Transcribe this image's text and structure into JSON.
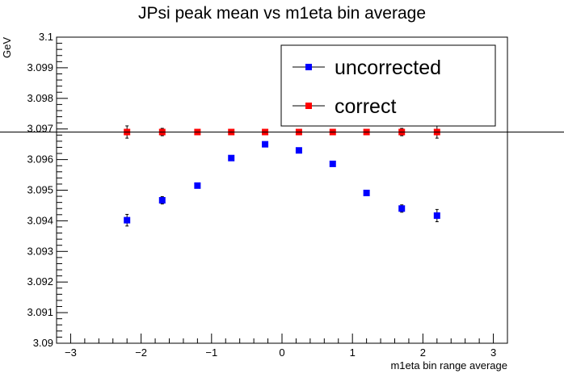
{
  "chart_data": {
    "type": "scatter",
    "title": "JPsi peak mean vs m1eta bin average",
    "xlabel": "m1eta bin range average",
    "ylabel": "GeV",
    "xlim": [
      -3.2,
      3.2
    ],
    "ylim": [
      3.09,
      3.1
    ],
    "x_ticks": [
      -3,
      -2,
      -1,
      0,
      1,
      2,
      3
    ],
    "x_tick_labels": [
      "−3",
      "−2",
      "−1",
      "0",
      "1",
      "2",
      "3"
    ],
    "y_ticks": [
      3.09,
      3.091,
      3.092,
      3.093,
      3.094,
      3.095,
      3.096,
      3.097,
      3.098,
      3.099,
      3.1
    ],
    "y_tick_labels": [
      "3.09",
      "3.091",
      "3.092",
      "3.093",
      "3.094",
      "3.095",
      "3.096",
      "3.097",
      "3.098",
      "3.099",
      "3.1"
    ],
    "grid": false,
    "legend_position": "top-right",
    "reference_line": {
      "y": 3.0969
    },
    "series": [
      {
        "name": "uncorrected",
        "color": "#0000ff",
        "marker": "square",
        "x": [
          -2.2,
          -1.7,
          -1.2,
          -0.72,
          -0.24,
          0.24,
          0.72,
          1.2,
          1.7,
          2.2
        ],
        "y": [
          3.09402,
          3.09467,
          3.09515,
          3.09605,
          3.0965,
          3.0963,
          3.09586,
          3.09491,
          3.0944,
          3.09417
        ],
        "yerr": [
          0.00019,
          0.00012,
          8e-05,
          6e-05,
          5e-05,
          5e-05,
          6e-05,
          8e-05,
          0.00012,
          0.0002
        ]
      },
      {
        "name": "correct",
        "color": "#ff0000",
        "marker": "square",
        "x": [
          -2.2,
          -1.7,
          -1.2,
          -0.72,
          -0.24,
          0.24,
          0.72,
          1.2,
          1.7,
          2.2
        ],
        "y": [
          3.0969,
          3.0969,
          3.0969,
          3.0969,
          3.0969,
          3.0969,
          3.0969,
          3.0969,
          3.0969,
          3.0969
        ],
        "yerr": [
          0.0002,
          0.00012,
          8e-05,
          6e-05,
          5e-05,
          5e-05,
          6e-05,
          8e-05,
          0.00012,
          0.0002
        ]
      }
    ]
  }
}
